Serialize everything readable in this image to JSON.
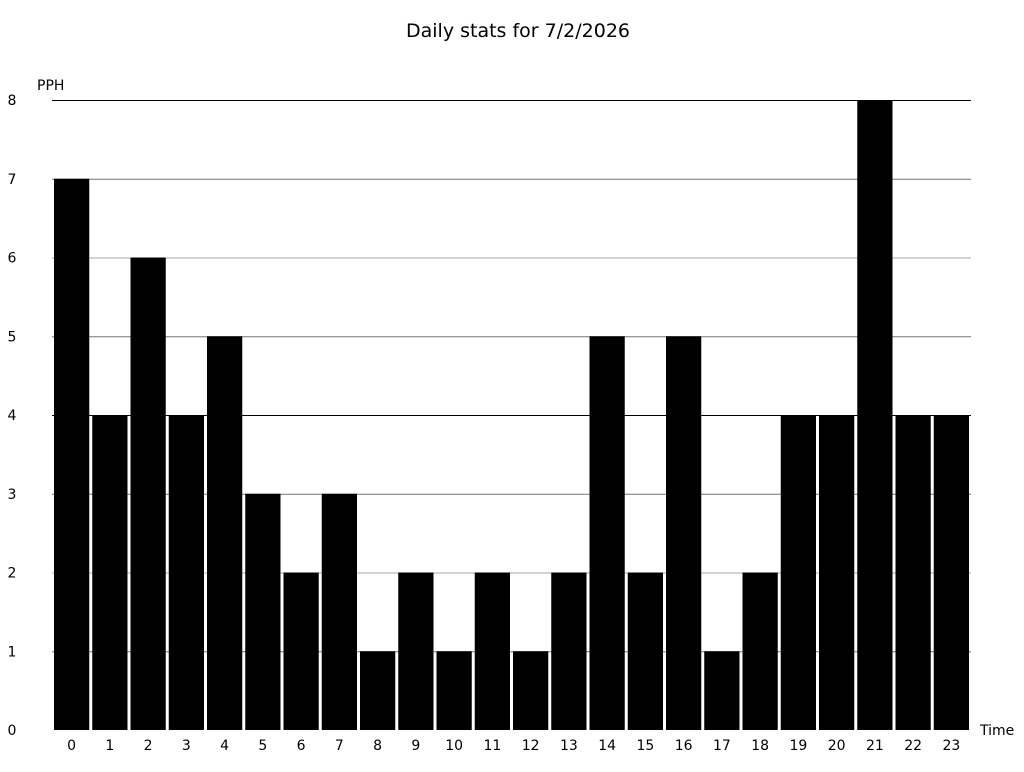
{
  "chart_data": {
    "type": "bar",
    "title": "Daily stats for 7/2/2026",
    "xlabel": "Time",
    "ylabel": "PPH",
    "ylim": [
      0,
      8
    ],
    "yticks": [
      0,
      1,
      2,
      3,
      4,
      5,
      6,
      7,
      8
    ],
    "grid": true,
    "categories": [
      "0",
      "1",
      "2",
      "3",
      "4",
      "5",
      "6",
      "7",
      "8",
      "9",
      "10",
      "11",
      "12",
      "13",
      "14",
      "15",
      "16",
      "17",
      "18",
      "19",
      "20",
      "21",
      "22",
      "23"
    ],
    "values": [
      7,
      4,
      6,
      4,
      5,
      3,
      2,
      3,
      1,
      2,
      1,
      2,
      1,
      2,
      5,
      2,
      5,
      1,
      2,
      4,
      4,
      8,
      4,
      4
    ],
    "bar_color": "#000000"
  }
}
